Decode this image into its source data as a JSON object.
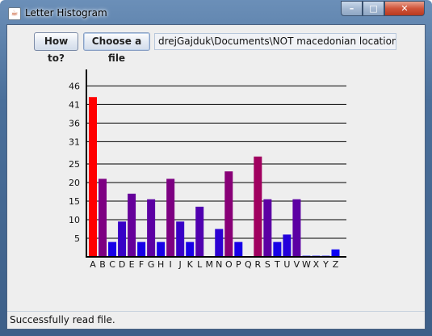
{
  "window": {
    "title": "Letter Histogram",
    "icon": "java-cup-icon",
    "minimize_glyph": "–",
    "maximize_glyph": "□",
    "close_glyph": "✕"
  },
  "toolbar": {
    "howto_label": "How to?",
    "choose_label": "Choose a file",
    "file_path": "drejGajduk\\Documents\\NOT macedonian locations.txt"
  },
  "status": {
    "text": "Successfully read file."
  },
  "chart_data": {
    "type": "bar",
    "title": "",
    "xlabel": "",
    "ylabel": "",
    "ylim": [
      0,
      50
    ],
    "yticks": [
      5,
      10,
      15,
      20,
      25,
      31,
      36,
      41,
      46
    ],
    "grid": true,
    "categories": [
      "A",
      "B",
      "C",
      "D",
      "E",
      "F",
      "G",
      "H",
      "I",
      "J",
      "K",
      "L",
      "M",
      "N",
      "O",
      "P",
      "Q",
      "R",
      "S",
      "T",
      "U",
      "V",
      "W",
      "X",
      "Y",
      "Z"
    ],
    "values": [
      43,
      21,
      4,
      9.5,
      17,
      4,
      15.5,
      4,
      21,
      9.5,
      4,
      13.5,
      0,
      7.5,
      23,
      4,
      0,
      27,
      15.5,
      4,
      6,
      15.5,
      0.3,
      0.3,
      0.3,
      2
    ],
    "colors": {
      "low": "#0000ff",
      "high": "#ff0000",
      "axis": "#000000",
      "grid": "#000000"
    }
  }
}
